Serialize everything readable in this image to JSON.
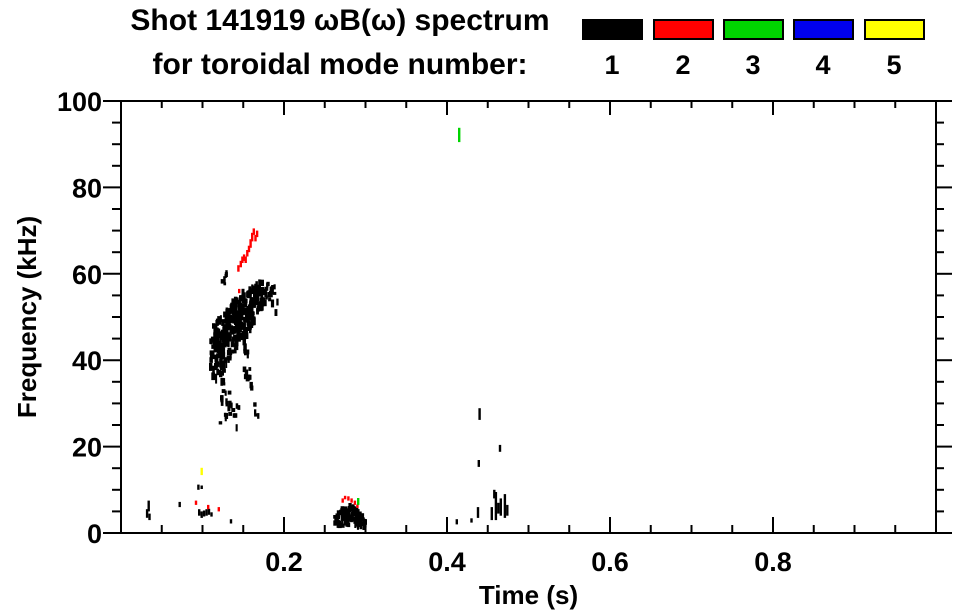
{
  "header": {
    "title_line1": "Shot 141919 ωB(ω) spectrum",
    "title_line2": "for toroidal mode number:"
  },
  "chart_data": {
    "type": "scatter",
    "title": "Shot 141919 ωB(ω) spectrum for toroidal mode number:",
    "xlabel": "Time (s)",
    "ylabel": "Frequency (kHz)",
    "xlim": [
      0,
      1.0
    ],
    "ylim": [
      0,
      100
    ],
    "grid": false,
    "legend_position": "top-right",
    "x_axis": {
      "label": "Time (s)",
      "ticks": [
        {
          "v": 0.2,
          "t": "0.2"
        },
        {
          "v": 0.4,
          "t": "0.4"
        },
        {
          "v": 0.6,
          "t": "0.6"
        },
        {
          "v": 0.8,
          "t": "0.8"
        }
      ],
      "minor_step": 0.05
    },
    "y_axis": {
      "label": "Frequency (kHz)",
      "ticks": [
        {
          "v": 0,
          "t": "0"
        },
        {
          "v": 20,
          "t": "20"
        },
        {
          "v": 40,
          "t": "40"
        },
        {
          "v": 60,
          "t": "60"
        },
        {
          "v": 80,
          "t": "80"
        },
        {
          "v": 100,
          "t": "100"
        }
      ],
      "minor_step": 5
    },
    "legend": [
      {
        "label": "1",
        "color": "#000000"
      },
      {
        "label": "2",
        "color": "#ff0000"
      },
      {
        "label": "3",
        "color": "#00d400"
      },
      {
        "label": "4",
        "color": "#0000ee"
      },
      {
        "label": "5",
        "color": "#ffff00"
      }
    ],
    "series": [
      {
        "mode": 1,
        "name": "toroidal mode n=1",
        "color": "#000000",
        "bands": [
          [
            0.112,
            38,
            45,
            12
          ],
          [
            0.115,
            36,
            48,
            18
          ],
          [
            0.118,
            35,
            49,
            22
          ],
          [
            0.121,
            36,
            50,
            22
          ],
          [
            0.124,
            34,
            51,
            22
          ],
          [
            0.127,
            36,
            51,
            22
          ],
          [
            0.13,
            38,
            52,
            22
          ],
          [
            0.133,
            40,
            52,
            20
          ],
          [
            0.136,
            41,
            53,
            20
          ],
          [
            0.139,
            42,
            54,
            20
          ],
          [
            0.142,
            43,
            54,
            20
          ],
          [
            0.145,
            44,
            55,
            20
          ],
          [
            0.148,
            45,
            55,
            20
          ],
          [
            0.151,
            44,
            56,
            20
          ],
          [
            0.154,
            45,
            56,
            20
          ],
          [
            0.157,
            46,
            56,
            20
          ],
          [
            0.16,
            48,
            57,
            18
          ],
          [
            0.163,
            49,
            57,
            16
          ],
          [
            0.166,
            50,
            58,
            16
          ],
          [
            0.169,
            51,
            58,
            14
          ],
          [
            0.172,
            52,
            58,
            12
          ],
          [
            0.175,
            53,
            58,
            9
          ],
          [
            0.179,
            54,
            58,
            7
          ],
          [
            0.183,
            54,
            57,
            5
          ],
          [
            0.187,
            53,
            57,
            4
          ],
          [
            0.19,
            51,
            56,
            3
          ],
          [
            0.124,
            25,
            34,
            5
          ],
          [
            0.128,
            26,
            33,
            5
          ],
          [
            0.132,
            28,
            34,
            4
          ],
          [
            0.136,
            27,
            33,
            4
          ],
          [
            0.14,
            24,
            30,
            3
          ],
          [
            0.144,
            29,
            33,
            2
          ],
          [
            0.153,
            36,
            43,
            6
          ],
          [
            0.157,
            35,
            42,
            5
          ],
          [
            0.16,
            33,
            38,
            3
          ],
          [
            0.164,
            27,
            30,
            2
          ],
          [
            0.167,
            27,
            29,
            2
          ],
          [
            0.126,
            57,
            60,
            3
          ],
          [
            0.13,
            58,
            60.5,
            3
          ],
          [
            0.264,
            2,
            4,
            5
          ],
          [
            0.268,
            1.5,
            5,
            8
          ],
          [
            0.272,
            1.5,
            5.5,
            10
          ],
          [
            0.276,
            1.5,
            6,
            12
          ],
          [
            0.28,
            1.5,
            6.5,
            12
          ],
          [
            0.284,
            1.5,
            6,
            11
          ],
          [
            0.288,
            1.5,
            5.5,
            10
          ],
          [
            0.292,
            1.5,
            5,
            8
          ],
          [
            0.296,
            1.5,
            4,
            6
          ],
          [
            0.3,
            1.5,
            3,
            4
          ]
        ],
        "dashes": [
          [
            0.032,
            3.5,
            5.5
          ],
          [
            0.034,
            5,
            7.5
          ],
          [
            0.035,
            3,
            4.5
          ],
          [
            0.072,
            6,
            7.2
          ],
          [
            0.095,
            10,
            11.2
          ],
          [
            0.099,
            10.2,
            11
          ],
          [
            0.096,
            4,
            5.5
          ],
          [
            0.099,
            3.5,
            5
          ],
          [
            0.102,
            3.8,
            5.2
          ],
          [
            0.105,
            4,
            5.5
          ],
          [
            0.108,
            4.2,
            5.6
          ],
          [
            0.111,
            3.8,
            4.8
          ],
          [
            0.135,
            2.2,
            3.2
          ],
          [
            0.412,
            2,
            3.2
          ],
          [
            0.43,
            2.4,
            3.4
          ],
          [
            0.438,
            3.5,
            6
          ],
          [
            0.439,
            15.3,
            16.9
          ],
          [
            0.44,
            26.2,
            28.9
          ],
          [
            0.455,
            3,
            6
          ],
          [
            0.458,
            8,
            10
          ],
          [
            0.46,
            3,
            9.5
          ],
          [
            0.463,
            4.5,
            7
          ],
          [
            0.465,
            18.8,
            20.4
          ],
          [
            0.466,
            4,
            8
          ],
          [
            0.471,
            3.5,
            9
          ],
          [
            0.474,
            4,
            6.5
          ]
        ]
      },
      {
        "mode": 2,
        "name": "toroidal mode n=2",
        "color": "#ff0000",
        "bands": [],
        "dashes": [
          [
            0.144,
            60.5,
            62
          ],
          [
            0.147,
            61.5,
            63
          ],
          [
            0.149,
            62.5,
            64
          ],
          [
            0.151,
            63,
            64.5
          ],
          [
            0.153,
            62.5,
            64
          ],
          [
            0.155,
            64,
            65.5
          ],
          [
            0.157,
            65,
            66.5
          ],
          [
            0.159,
            66,
            68
          ],
          [
            0.161,
            67.5,
            69.5
          ],
          [
            0.163,
            69,
            70.5
          ],
          [
            0.165,
            67.5,
            69
          ],
          [
            0.167,
            68.5,
            70
          ],
          [
            0.145,
            55.5,
            56.5
          ],
          [
            0.092,
            6.5,
            7.5
          ],
          [
            0.107,
            5.5,
            6.5
          ],
          [
            0.12,
            5,
            6
          ],
          [
            0.272,
            7,
            8
          ],
          [
            0.275,
            7.8,
            8.6
          ],
          [
            0.279,
            7.5,
            8.5
          ],
          [
            0.283,
            7,
            8
          ],
          [
            0.287,
            6.5,
            7.5
          ],
          [
            0.29,
            5.8,
            6.6
          ]
        ]
      },
      {
        "mode": 3,
        "name": "toroidal mode n=3",
        "color": "#00d400",
        "bands": [],
        "dashes": [
          [
            0.415,
            90.5,
            93.8
          ],
          [
            0.291,
            6.5,
            8.1
          ]
        ]
      },
      {
        "mode": 4,
        "name": "toroidal mode n=4",
        "color": "#0000ee",
        "bands": [],
        "dashes": []
      },
      {
        "mode": 5,
        "name": "toroidal mode n=5",
        "color": "#ffff00",
        "bands": [],
        "dashes": [
          [
            0.099,
            13.4,
            15.1
          ]
        ]
      }
    ]
  }
}
